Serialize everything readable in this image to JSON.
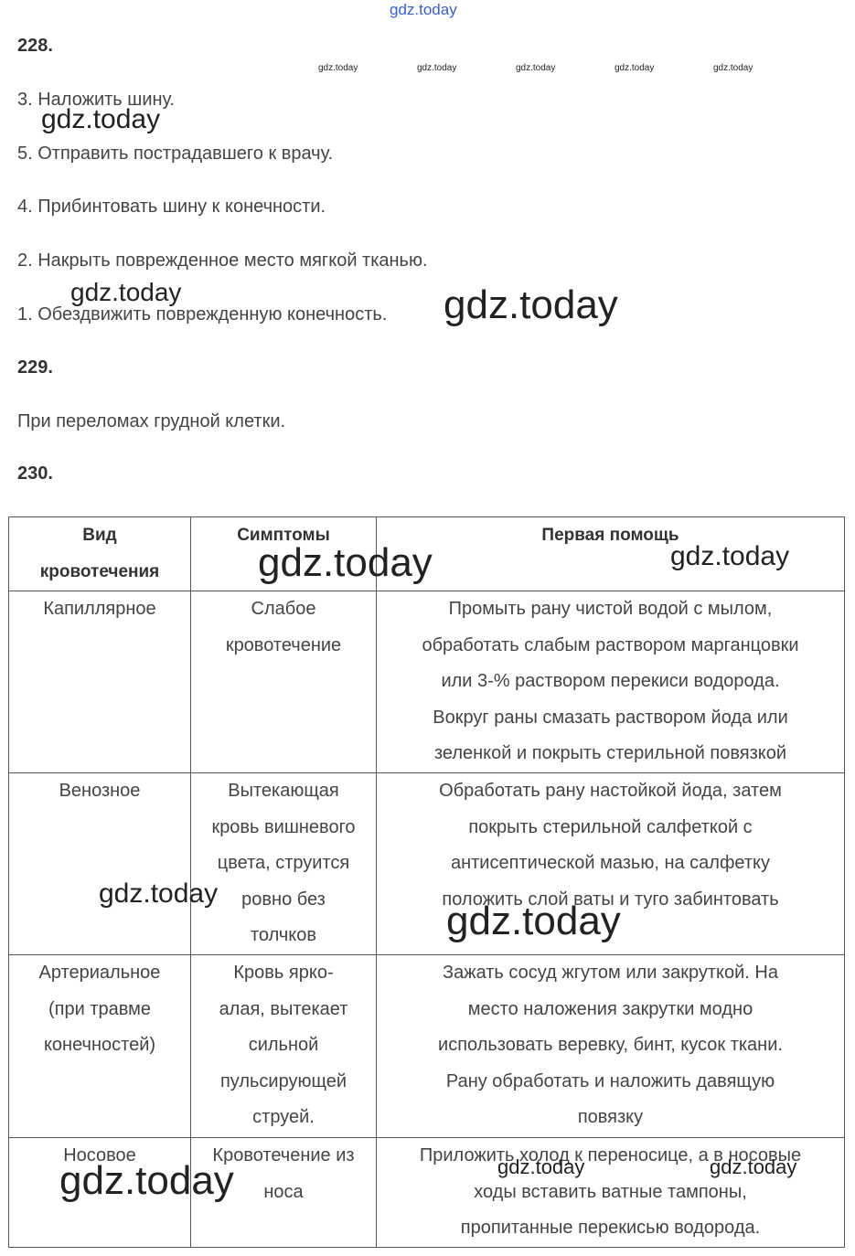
{
  "sections": [
    {
      "number": "228.",
      "lines": [
        "3. Наложить шину.",
        "5. Отправить пострадавшего к врачу.",
        "4. Прибинтовать шину к конечности.",
        "2. Накрыть поврежденное место мягкой тканью.",
        "1. Обездвижить поврежденную конечность."
      ]
    },
    {
      "number": "229.",
      "lines": [
        "При переломах грудной клетки."
      ]
    },
    {
      "number": "230.",
      "table": {
        "header": [
          [
            "Вид",
            "кровотечения"
          ],
          [
            "Симптомы"
          ],
          [
            "Первая помощь"
          ]
        ],
        "rows": [
          [
            [
              "Капиллярное"
            ],
            [
              "Слабое",
              "кровотечение"
            ],
            [
              "Промыть рану чистой водой с мылом,",
              "обработать слабым раствором марганцовки",
              "или 3-% раствором перекиси водорода.",
              "Вокруг раны смазать раствором йода или",
              "зеленкой и покрыть стерильной повязкой"
            ]
          ],
          [
            [
              "Венозное"
            ],
            [
              "Вытекающая",
              "кровь вишневого",
              "цвета, струится",
              "ровно без",
              "толчков"
            ],
            [
              "Обработать рану настойкой йода, затем",
              "покрыть стерильной салфеткой с",
              "антисептической мазью, на салфетку",
              "положить слой ваты и туго забинтовать"
            ]
          ],
          [
            [
              "Артериальное",
              "(при травме",
              "конечностей)"
            ],
            [
              "Кровь ярко-",
              "алая, вытекает",
              "сильной",
              "пульсирующей",
              "струей."
            ],
            [
              "Зажать сосуд жгутом или закруткой. На",
              "место наложения закрутки модно",
              "использовать веревку, бинт, кусок ткани.",
              "Рану обработать и наложить давящую",
              "повязку"
            ]
          ],
          [
            [
              "Носовое"
            ],
            [
              "Кровотечение из",
              "носа"
            ],
            [
              "Приложить холод к переносице, а в носовые",
              "ходы вставить ватные тампоны,",
              "пропитанные перекисью водорода."
            ]
          ]
        ]
      }
    }
  ],
  "watermarks": [
    "gdz.today",
    "gdz.today",
    "gdz.today",
    "gdz.today",
    "gdz.today",
    "gdz.today",
    "gdz.today",
    "gdz.today",
    "gdz.today",
    "gdz.today",
    "gdz.today",
    "gdz.today",
    "gdz.today",
    "gdz.today",
    "gdz.today",
    "gdz.today"
  ]
}
